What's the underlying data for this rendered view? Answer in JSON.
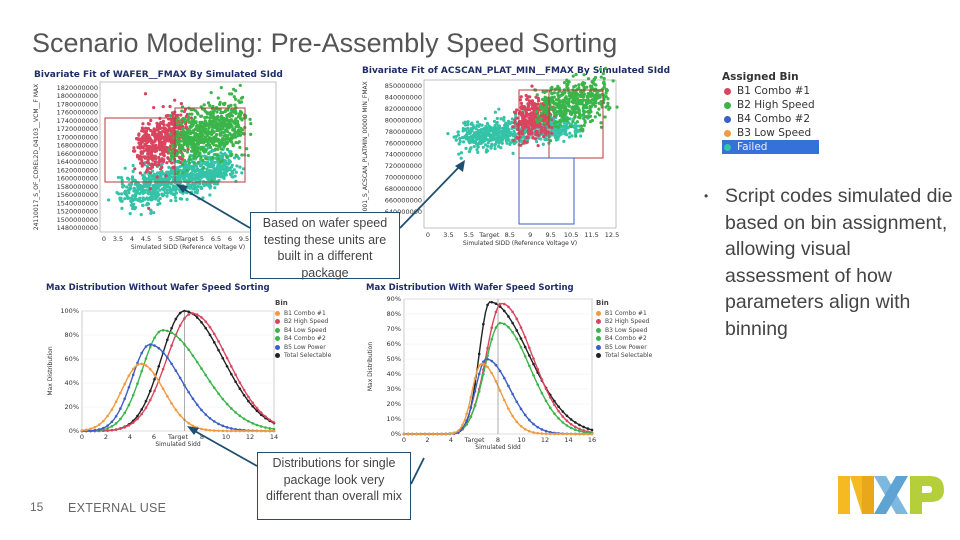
{
  "slide": {
    "title": "Scenario Modeling: Pre-Assembly Speed Sorting",
    "bullet": "Script codes simulated die based on bin assignment, allowing visual assessment of how parameters align with binning",
    "bullet_marker": "•",
    "callout_wafer": "Based on wafer speed testing these units are built in a different package",
    "callout_dist": "Distributions for single package look very different than overall mix",
    "page_number": "15",
    "footer": "EXTERNAL USE",
    "logo": "NXP"
  },
  "colors": {
    "red": "#d9455f",
    "green": "#3bb54a",
    "blue": "#3b5fc4",
    "orange": "#f29a3f",
    "teal": "#35c3a8",
    "black": "#222222",
    "nxp_yellow": "#f5b921",
    "nxp_blue": "#7fb8de",
    "nxp_green": "#b5cf3a"
  },
  "legend": {
    "title": "Assigned Bin",
    "items": [
      {
        "label": "B1 Combo #1",
        "color": "#d9455f"
      },
      {
        "label": "B2 High Speed",
        "color": "#3bb54a"
      },
      {
        "label": "B4 Combo #2",
        "color": "#3b5fc4"
      },
      {
        "label": "B3 Low Speed",
        "color": "#f29a3f"
      },
      {
        "label": "Failed",
        "color": "#35c3a8",
        "selected": true
      }
    ]
  },
  "dist_legend": {
    "title": "Bin",
    "left_items": [
      {
        "label": "B1 Combo #1",
        "color": "#f29a3f"
      },
      {
        "label": "B2 High Speed",
        "color": "#d9455f"
      },
      {
        "label": "B4 Low Speed",
        "color": "#3bb54a"
      },
      {
        "label": "B4 Combo #2",
        "color": "#3bb54a"
      },
      {
        "label": "B5 Low Power",
        "color": "#3b5fc4"
      },
      {
        "label": "Total Selectable",
        "color": "#222222"
      }
    ],
    "right_items": [
      {
        "label": "B1 Combo #1",
        "color": "#f29a3f"
      },
      {
        "label": "B2 High Speed",
        "color": "#d9455f"
      },
      {
        "label": "B3 Low Speed",
        "color": "#3bb54a"
      },
      {
        "label": "B4 Combo #2",
        "color": "#3bb54a"
      },
      {
        "label": "B5 Low Power",
        "color": "#3b5fc4"
      },
      {
        "label": "Total Selectable",
        "color": "#222222"
      }
    ]
  },
  "chart_data": [
    {
      "type": "scatter",
      "title": "Bivariate Fit of WAFER__FMAX By Simulated SIdd",
      "ylabel": "24110017_S_OF_COREL2D_04103__VCM__F MAX",
      "xlabel": "Simulated SIDD (Reference Voltage V)",
      "x_ticks": [
        "0",
        "3.5",
        "4",
        "4.5",
        "5",
        "5.5",
        "Target",
        "5",
        "6.5",
        "6",
        "9.5",
        "10.5",
        "11"
      ],
      "y_ticks": [
        "1820000000",
        "1800000000",
        "1780000000",
        "1760000000",
        "1740000000",
        "1720000000",
        "1700000000",
        "1680000000",
        "1660000000",
        "1640000000",
        "1620000000",
        "1600000000",
        "1580000000",
        "1560000000",
        "1540000000",
        "1520000000",
        "1500000000",
        "1480000000"
      ]
    },
    {
      "type": "scatter",
      "title": "Bivariate Fit of ACSCAN_PLAT_MIN__FMAX By Simulated SIdd",
      "ylabel": "2410001_S_ACSCAN_PLATMIN_00000 MIN_FMAX",
      "xlabel": "Simulated SIDD (Reference Voltage V)",
      "x_ticks": [
        "0",
        "3.5",
        "5.5",
        "Target",
        "8.5",
        "9",
        "9.5",
        "10.5",
        "11.5",
        "12.5"
      ],
      "y_ticks": [
        "850000000",
        "840000000",
        "820000000",
        "800000000",
        "780000000",
        "760000000",
        "740000000",
        "720000000",
        "700000000",
        "680000000",
        "660000000",
        "640000000"
      ]
    },
    {
      "type": "line",
      "title": "Max Distribution Without Wafer Speed Sorting",
      "ylabel": "Max Distribution",
      "xlabel": "Simulated Sidd",
      "x_ticks": [
        "0",
        "2",
        "4",
        "6",
        "Target",
        "8",
        "10",
        "12",
        "14"
      ],
      "y_ticks": [
        "0%",
        "20%",
        "40%",
        "60%",
        "80%",
        "100%"
      ],
      "xlim": [
        0,
        15
      ],
      "ylim": [
        0,
        100
      ],
      "series": [
        {
          "color": "#222222",
          "peak_x": 8.0,
          "peak_y": 100,
          "sigma_l": 1.8,
          "sigma_r": 3.0
        },
        {
          "color": "#d9455f",
          "peak_x": 8.6,
          "peak_y": 98,
          "sigma_l": 2.0,
          "sigma_r": 2.8
        },
        {
          "color": "#3bb54a",
          "peak_x": 6.3,
          "peak_y": 84,
          "sigma_l": 1.6,
          "sigma_r": 3.1
        },
        {
          "color": "#3b5fc4",
          "peak_x": 5.3,
          "peak_y": 72,
          "sigma_l": 1.4,
          "sigma_r": 2.4
        },
        {
          "color": "#f29a3f",
          "peak_x": 4.6,
          "peak_y": 56,
          "sigma_l": 1.5,
          "sigma_r": 1.8
        }
      ]
    },
    {
      "type": "line",
      "title": "Max Distribution With Wafer Speed Sorting",
      "ylabel": "Max Distribution",
      "xlabel": "Simulated SIdd",
      "x_ticks": [
        "0",
        "2",
        "4",
        "Target",
        "8",
        "10",
        "12",
        "14",
        "16"
      ],
      "y_ticks": [
        "0%",
        "10%",
        "20%",
        "30%",
        "40%",
        "50%",
        "60%",
        "70%",
        "80%",
        "90%"
      ],
      "xlim": [
        0,
        16
      ],
      "ylim": [
        0,
        90
      ],
      "series": [
        {
          "color": "#222222",
          "peak_x": 7.3,
          "peak_y": 88,
          "sigma_l": 0.9,
          "sigma_r": 3.3
        },
        {
          "color": "#d9455f",
          "peak_x": 8.3,
          "peak_y": 87,
          "sigma_l": 1.3,
          "sigma_r": 2.6
        },
        {
          "color": "#3bb54a",
          "peak_x": 8.2,
          "peak_y": 74,
          "sigma_l": 1.3,
          "sigma_r": 2.5
        },
        {
          "color": "#3b5fc4",
          "peak_x": 7.0,
          "peak_y": 50,
          "sigma_l": 0.9,
          "sigma_r": 2.0
        },
        {
          "color": "#f29a3f",
          "peak_x": 6.6,
          "peak_y": 47,
          "sigma_l": 0.8,
          "sigma_r": 1.6
        }
      ]
    }
  ]
}
